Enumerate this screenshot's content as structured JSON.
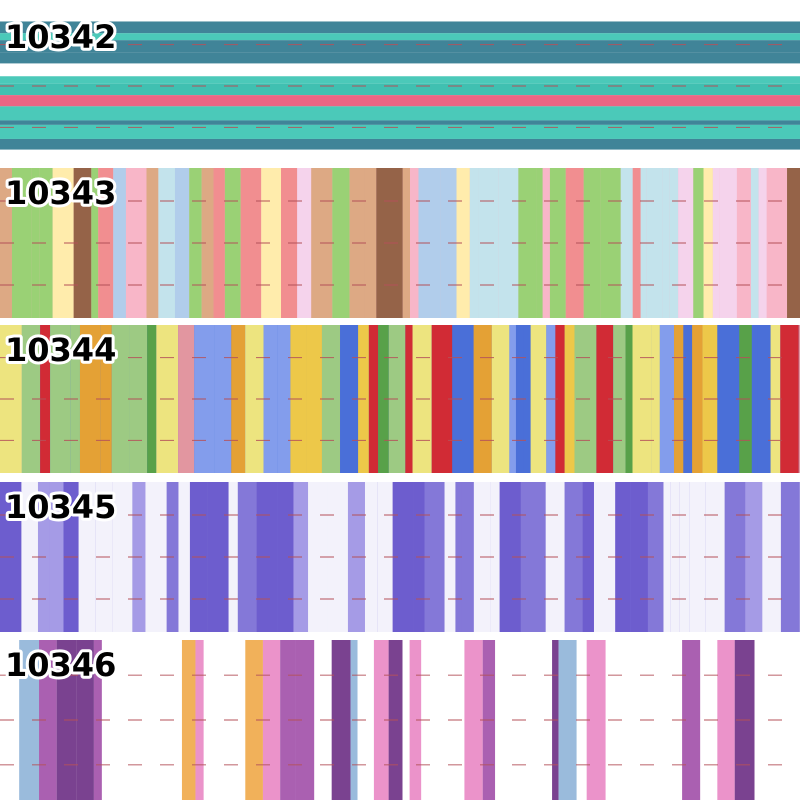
{
  "ribbons": [
    {
      "label": "10342"
    },
    {
      "label": "10343"
    },
    {
      "label": "10344"
    },
    {
      "label": "10345"
    },
    {
      "label": "10346"
    }
  ]
}
